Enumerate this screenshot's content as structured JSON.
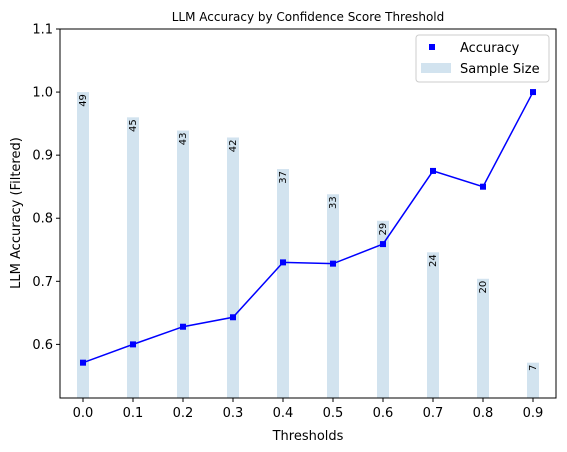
{
  "chart_data": {
    "type": "bar+line",
    "title": "LLM Accuracy by Confidence Score Threshold",
    "xlabel": "Thresholds",
    "ylabel": "LLM Accuracy (Filtered)",
    "x_ticks": [
      "0.0",
      "0.1",
      "0.2",
      "0.3",
      "0.4",
      "0.5",
      "0.6",
      "0.7",
      "0.8",
      "0.9"
    ],
    "y_ticks": [
      "0.6",
      "0.7",
      "0.8",
      "0.9",
      "1.0",
      "1.1"
    ],
    "x": [
      0.0,
      0.1,
      0.2,
      0.3,
      0.4,
      0.5,
      0.6,
      0.7,
      0.8,
      0.9
    ],
    "ylim": [
      0.515,
      1.1
    ],
    "grid": false,
    "legend_position": "top-right",
    "series": [
      {
        "name": "Accuracy",
        "kind": "line-with-square-markers",
        "color": "#0000ff",
        "values": [
          0.571,
          0.6,
          0.628,
          0.643,
          0.73,
          0.728,
          0.759,
          0.875,
          0.85,
          1.0
        ]
      },
      {
        "name": "Sample Size",
        "kind": "bar",
        "color": "#a6c8df",
        "values": [
          1.0,
          0.96,
          0.939,
          0.928,
          0.878,
          0.838,
          0.796,
          0.746,
          0.704,
          0.571
        ],
        "labels": [
          "49",
          "45",
          "43",
          "42",
          "37",
          "33",
          "29",
          "24",
          "20",
          "7"
        ]
      }
    ]
  }
}
